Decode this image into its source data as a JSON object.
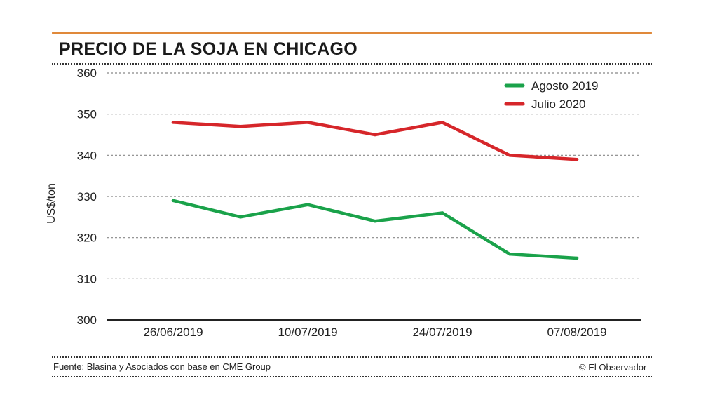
{
  "header": {
    "title": "PRECIO DE LA SOJA EN CHICAGO"
  },
  "footer": {
    "source": "Fuente: Blasina y Asociados con base en CME Group",
    "credit": "© El Observador"
  },
  "colors": {
    "accent": "#e0893a",
    "green": "#1aa24a",
    "red": "#d6262a"
  },
  "chart_data": {
    "type": "line",
    "title": "PRECIO DE LA SOJA EN CHICAGO",
    "xlabel": "",
    "ylabel": "US$/ton",
    "ylim": [
      300,
      360
    ],
    "yticks": [
      300,
      310,
      320,
      330,
      340,
      350,
      360
    ],
    "x": [
      "26/06/2019",
      "03/07/2019",
      "10/07/2019",
      "17/07/2019",
      "24/07/2019",
      "31/07/2019",
      "07/08/2019"
    ],
    "xtick_labels": [
      "26/06/2019",
      "10/07/2019",
      "24/07/2019",
      "07/08/2019"
    ],
    "grid": true,
    "legend_position": "top-right",
    "series": [
      {
        "name": "Agosto 2019",
        "color": "#1aa24a",
        "values": [
          329,
          325,
          328,
          324,
          326,
          316,
          315
        ]
      },
      {
        "name": "Julio 2020",
        "color": "#d6262a",
        "values": [
          348,
          347,
          348,
          345,
          348,
          340,
          339
        ]
      }
    ]
  }
}
